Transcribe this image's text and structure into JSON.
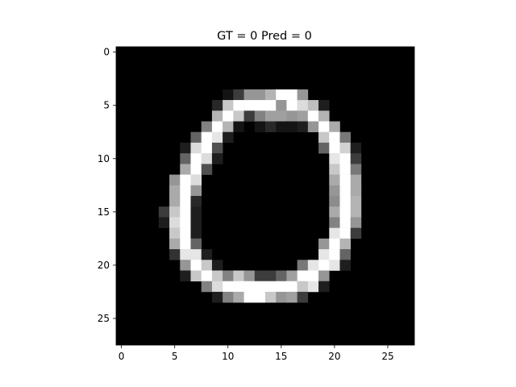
{
  "chart_data": {
    "type": "heatmap",
    "title": "GT = 0 Pred = 0",
    "xlabel": "",
    "ylabel": "",
    "rows": 28,
    "cols": 28,
    "colormap": "gray",
    "value_range": [
      0,
      255
    ],
    "xlim": [
      -0.5,
      27.5
    ],
    "ylim": [
      27.5,
      -0.5
    ],
    "grid": false,
    "x_ticks": [
      0,
      5,
      10,
      15,
      20,
      25
    ],
    "y_ticks": [
      0,
      5,
      10,
      15,
      20,
      25
    ],
    "x_tick_labels": [
      "0",
      "5",
      "10",
      "15",
      "20",
      "25"
    ],
    "y_tick_labels": [
      "0",
      "5",
      "10",
      "15",
      "20",
      "25"
    ],
    "pixels": [
      {
        "r": 4,
        "c": 10,
        "v": 20
      },
      {
        "r": 4,
        "c": 11,
        "v": 60
      },
      {
        "r": 4,
        "c": 12,
        "v": 150
      },
      {
        "r": 4,
        "c": 13,
        "v": 150
      },
      {
        "r": 4,
        "c": 14,
        "v": 180
      },
      {
        "r": 4,
        "c": 15,
        "v": 255
      },
      {
        "r": 4,
        "c": 16,
        "v": 255
      },
      {
        "r": 4,
        "c": 17,
        "v": 150
      },
      {
        "r": 5,
        "c": 9,
        "v": 40
      },
      {
        "r": 5,
        "c": 10,
        "v": 200
      },
      {
        "r": 5,
        "c": 11,
        "v": 255
      },
      {
        "r": 5,
        "c": 12,
        "v": 255
      },
      {
        "r": 5,
        "c": 13,
        "v": 255
      },
      {
        "r": 5,
        "c": 14,
        "v": 255
      },
      {
        "r": 5,
        "c": 15,
        "v": 150
      },
      {
        "r": 5,
        "c": 16,
        "v": 255
      },
      {
        "r": 5,
        "c": 17,
        "v": 220
      },
      {
        "r": 5,
        "c": 18,
        "v": 190
      },
      {
        "r": 5,
        "c": 19,
        "v": 30
      },
      {
        "r": 6,
        "c": 9,
        "v": 180
      },
      {
        "r": 6,
        "c": 10,
        "v": 255
      },
      {
        "r": 6,
        "c": 11,
        "v": 200
      },
      {
        "r": 6,
        "c": 12,
        "v": 60
      },
      {
        "r": 6,
        "c": 13,
        "v": 130
      },
      {
        "r": 6,
        "c": 14,
        "v": 160
      },
      {
        "r": 6,
        "c": 15,
        "v": 160
      },
      {
        "r": 6,
        "c": 16,
        "v": 150
      },
      {
        "r": 6,
        "c": 17,
        "v": 160
      },
      {
        "r": 6,
        "c": 18,
        "v": 255
      },
      {
        "r": 6,
        "c": 19,
        "v": 180
      },
      {
        "r": 7,
        "c": 8,
        "v": 130
      },
      {
        "r": 7,
        "c": 9,
        "v": 255
      },
      {
        "r": 7,
        "c": 10,
        "v": 180
      },
      {
        "r": 7,
        "c": 11,
        "v": 20
      },
      {
        "r": 7,
        "c": 13,
        "v": 20
      },
      {
        "r": 7,
        "c": 14,
        "v": 40
      },
      {
        "r": 7,
        "c": 15,
        "v": 20
      },
      {
        "r": 7,
        "c": 16,
        "v": 20
      },
      {
        "r": 7,
        "c": 17,
        "v": 30
      },
      {
        "r": 7,
        "c": 18,
        "v": 150
      },
      {
        "r": 7,
        "c": 19,
        "v": 255
      },
      {
        "r": 7,
        "c": 20,
        "v": 170
      },
      {
        "r": 8,
        "c": 7,
        "v": 100
      },
      {
        "r": 8,
        "c": 8,
        "v": 255
      },
      {
        "r": 8,
        "c": 9,
        "v": 230
      },
      {
        "r": 8,
        "c": 10,
        "v": 30
      },
      {
        "r": 8,
        "c": 19,
        "v": 200
      },
      {
        "r": 8,
        "c": 20,
        "v": 255
      },
      {
        "r": 8,
        "c": 21,
        "v": 120
      },
      {
        "r": 9,
        "c": 6,
        "v": 30
      },
      {
        "r": 9,
        "c": 7,
        "v": 220
      },
      {
        "r": 9,
        "c": 8,
        "v": 255
      },
      {
        "r": 9,
        "c": 9,
        "v": 80
      },
      {
        "r": 9,
        "c": 19,
        "v": 100
      },
      {
        "r": 9,
        "c": 20,
        "v": 255
      },
      {
        "r": 9,
        "c": 21,
        "v": 210
      },
      {
        "r": 9,
        "c": 22,
        "v": 30
      },
      {
        "r": 10,
        "c": 6,
        "v": 100
      },
      {
        "r": 10,
        "c": 7,
        "v": 255
      },
      {
        "r": 10,
        "c": 8,
        "v": 220
      },
      {
        "r": 10,
        "c": 9,
        "v": 30
      },
      {
        "r": 10,
        "c": 20,
        "v": 230
      },
      {
        "r": 10,
        "c": 21,
        "v": 255
      },
      {
        "r": 10,
        "c": 22,
        "v": 60
      },
      {
        "r": 11,
        "c": 6,
        "v": 170
      },
      {
        "r": 11,
        "c": 7,
        "v": 255
      },
      {
        "r": 11,
        "c": 8,
        "v": 80
      },
      {
        "r": 11,
        "c": 20,
        "v": 200
      },
      {
        "r": 11,
        "c": 21,
        "v": 255
      },
      {
        "r": 11,
        "c": 22,
        "v": 120
      },
      {
        "r": 12,
        "c": 5,
        "v": 150
      },
      {
        "r": 12,
        "c": 6,
        "v": 255
      },
      {
        "r": 12,
        "c": 7,
        "v": 220
      },
      {
        "r": 12,
        "c": 20,
        "v": 170
      },
      {
        "r": 12,
        "c": 21,
        "v": 255
      },
      {
        "r": 12,
        "c": 22,
        "v": 170
      },
      {
        "r": 13,
        "c": 5,
        "v": 170
      },
      {
        "r": 13,
        "c": 6,
        "v": 255
      },
      {
        "r": 13,
        "c": 7,
        "v": 150
      },
      {
        "r": 13,
        "c": 20,
        "v": 150
      },
      {
        "r": 13,
        "c": 21,
        "v": 255
      },
      {
        "r": 13,
        "c": 22,
        "v": 170
      },
      {
        "r": 14,
        "c": 5,
        "v": 170
      },
      {
        "r": 14,
        "c": 6,
        "v": 255
      },
      {
        "r": 14,
        "c": 7,
        "v": 40
      },
      {
        "r": 14,
        "c": 20,
        "v": 140
      },
      {
        "r": 14,
        "c": 21,
        "v": 255
      },
      {
        "r": 14,
        "c": 22,
        "v": 180
      },
      {
        "r": 15,
        "c": 4,
        "v": 60
      },
      {
        "r": 15,
        "c": 5,
        "v": 200
      },
      {
        "r": 15,
        "c": 6,
        "v": 255
      },
      {
        "r": 15,
        "c": 7,
        "v": 30
      },
      {
        "r": 15,
        "c": 20,
        "v": 170
      },
      {
        "r": 15,
        "c": 21,
        "v": 255
      },
      {
        "r": 15,
        "c": 22,
        "v": 180
      },
      {
        "r": 16,
        "c": 4,
        "v": 30
      },
      {
        "r": 16,
        "c": 5,
        "v": 220
      },
      {
        "r": 16,
        "c": 6,
        "v": 255
      },
      {
        "r": 16,
        "c": 7,
        "v": 30
      },
      {
        "r": 16,
        "c": 20,
        "v": 130
      },
      {
        "r": 16,
        "c": 21,
        "v": 255
      },
      {
        "r": 16,
        "c": 22,
        "v": 150
      },
      {
        "r": 17,
        "c": 5,
        "v": 200
      },
      {
        "r": 17,
        "c": 6,
        "v": 255
      },
      {
        "r": 17,
        "c": 7,
        "v": 30
      },
      {
        "r": 17,
        "c": 20,
        "v": 230
      },
      {
        "r": 17,
        "c": 21,
        "v": 255
      },
      {
        "r": 17,
        "c": 22,
        "v": 60
      },
      {
        "r": 18,
        "c": 5,
        "v": 170
      },
      {
        "r": 18,
        "c": 6,
        "v": 255
      },
      {
        "r": 18,
        "c": 7,
        "v": 100
      },
      {
        "r": 18,
        "c": 19,
        "v": 150
      },
      {
        "r": 18,
        "c": 20,
        "v": 255
      },
      {
        "r": 18,
        "c": 21,
        "v": 180
      },
      {
        "r": 19,
        "c": 5,
        "v": 50
      },
      {
        "r": 19,
        "c": 6,
        "v": 230
      },
      {
        "r": 19,
        "c": 7,
        "v": 230
      },
      {
        "r": 19,
        "c": 8,
        "v": 30
      },
      {
        "r": 19,
        "c": 19,
        "v": 230
      },
      {
        "r": 19,
        "c": 20,
        "v": 255
      },
      {
        "r": 19,
        "c": 21,
        "v": 100
      },
      {
        "r": 20,
        "c": 6,
        "v": 150
      },
      {
        "r": 20,
        "c": 7,
        "v": 255
      },
      {
        "r": 20,
        "c": 8,
        "v": 200
      },
      {
        "r": 20,
        "c": 9,
        "v": 30
      },
      {
        "r": 20,
        "c": 17,
        "v": 120
      },
      {
        "r": 20,
        "c": 18,
        "v": 230
      },
      {
        "r": 20,
        "c": 19,
        "v": 255
      },
      {
        "r": 20,
        "c": 20,
        "v": 230
      },
      {
        "r": 20,
        "c": 21,
        "v": 30
      },
      {
        "r": 21,
        "c": 6,
        "v": 30
      },
      {
        "r": 21,
        "c": 7,
        "v": 200
      },
      {
        "r": 21,
        "c": 8,
        "v": 255
      },
      {
        "r": 21,
        "c": 9,
        "v": 200
      },
      {
        "r": 21,
        "c": 10,
        "v": 130
      },
      {
        "r": 21,
        "c": 11,
        "v": 200
      },
      {
        "r": 21,
        "c": 12,
        "v": 150
      },
      {
        "r": 21,
        "c": 13,
        "v": 60
      },
      {
        "r": 21,
        "c": 14,
        "v": 60
      },
      {
        "r": 21,
        "c": 15,
        "v": 100
      },
      {
        "r": 21,
        "c": 16,
        "v": 160
      },
      {
        "r": 21,
        "c": 17,
        "v": 255
      },
      {
        "r": 21,
        "c": 18,
        "v": 255
      },
      {
        "r": 21,
        "c": 19,
        "v": 150
      },
      {
        "r": 22,
        "c": 8,
        "v": 130
      },
      {
        "r": 22,
        "c": 9,
        "v": 220
      },
      {
        "r": 22,
        "c": 10,
        "v": 255
      },
      {
        "r": 22,
        "c": 11,
        "v": 255
      },
      {
        "r": 22,
        "c": 12,
        "v": 255
      },
      {
        "r": 22,
        "c": 13,
        "v": 255
      },
      {
        "r": 22,
        "c": 14,
        "v": 255
      },
      {
        "r": 22,
        "c": 15,
        "v": 255
      },
      {
        "r": 22,
        "c": 16,
        "v": 255
      },
      {
        "r": 22,
        "c": 17,
        "v": 200
      },
      {
        "r": 22,
        "c": 18,
        "v": 230
      },
      {
        "r": 22,
        "c": 19,
        "v": 30
      },
      {
        "r": 23,
        "c": 9,
        "v": 30
      },
      {
        "r": 23,
        "c": 10,
        "v": 130
      },
      {
        "r": 23,
        "c": 11,
        "v": 170
      },
      {
        "r": 23,
        "c": 12,
        "v": 255
      },
      {
        "r": 23,
        "c": 13,
        "v": 255
      },
      {
        "r": 23,
        "c": 14,
        "v": 200
      },
      {
        "r": 23,
        "c": 15,
        "v": 150
      },
      {
        "r": 23,
        "c": 16,
        "v": 160
      },
      {
        "r": 23,
        "c": 17,
        "v": 60
      }
    ]
  }
}
